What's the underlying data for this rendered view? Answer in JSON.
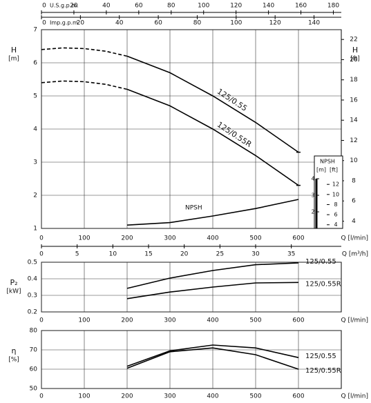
{
  "chart_data": [
    {
      "type": "line",
      "x_label": "Q [l/min]",
      "xlim": [
        0,
        700
      ],
      "xticks": [
        0,
        100,
        200,
        300,
        400,
        500,
        600
      ],
      "y_label": "H",
      "y_unit": "[m]",
      "ylim": [
        1,
        7
      ],
      "yticks": [
        1,
        2,
        3,
        4,
        5,
        6,
        7
      ],
      "y2_label": "H",
      "y2_unit": "[ft]",
      "y2lim": [
        3.28,
        22.97
      ],
      "y2ticks": [
        4,
        6,
        8,
        10,
        12,
        14,
        16,
        18,
        20,
        22
      ],
      "grid": true,
      "dashed_range": [
        0,
        200
      ],
      "top_axes": [
        {
          "label": "U.S.g.p.m.",
          "lim": [
            0,
            184.9
          ],
          "ticks": [
            0,
            20,
            40,
            60,
            80,
            100,
            120,
            140,
            160,
            180
          ]
        },
        {
          "label": "Imp.g.p.m.",
          "lim": [
            0,
            154
          ],
          "ticks": [
            0,
            20,
            40,
            60,
            80,
            100,
            120,
            140
          ]
        }
      ],
      "bottom_axis": {
        "label": "Q [m³/h]",
        "lim": [
          0,
          42
        ],
        "ticks": [
          0,
          5,
          10,
          15,
          20,
          25,
          30,
          35
        ]
      },
      "npsh_axis": {
        "label": "NPSH",
        "unit": "[m]",
        "ylim": [
          1,
          4
        ],
        "yticks": [
          2,
          3,
          4
        ],
        "unit2": "[ft]",
        "y2lim": [
          3.28,
          13.12
        ],
        "y2ticks": [
          4,
          6,
          8,
          10,
          12
        ]
      },
      "x": [
        0,
        50,
        100,
        150,
        200,
        300,
        400,
        500,
        600
      ],
      "series": [
        {
          "name": "125/0.55",
          "color": "#000000",
          "values": [
            6.4,
            6.45,
            6.43,
            6.35,
            6.2,
            5.7,
            5.0,
            4.2,
            3.3
          ]
        },
        {
          "name": "125/0.55R",
          "color": "#000000",
          "values": [
            5.4,
            5.45,
            5.43,
            5.35,
            5.2,
            4.7,
            4.0,
            3.2,
            2.3
          ]
        },
        {
          "name": "NPSH",
          "color": "#000000",
          "axis": "npsh",
          "values": [
            null,
            null,
            null,
            null,
            1.2,
            1.35,
            1.75,
            2.2,
            2.75
          ]
        }
      ]
    },
    {
      "type": "line",
      "x_label": "Q [l/min]",
      "xlim": [
        0,
        700
      ],
      "xticks": [
        0,
        100,
        200,
        300,
        400,
        500,
        600
      ],
      "y_label": "P₂",
      "y_unit": "[kW]",
      "ylim": [
        0.2,
        0.5
      ],
      "yticks": [
        0.2,
        0.3,
        0.4,
        0.5
      ],
      "grid": true,
      "x": [
        200,
        300,
        400,
        500,
        600
      ],
      "series": [
        {
          "name": "125/0.55",
          "color": "#000000",
          "values": [
            0.342,
            0.404,
            0.45,
            0.485,
            0.496
          ]
        },
        {
          "name": "125/0.55R",
          "color": "#000000",
          "values": [
            0.28,
            0.32,
            0.35,
            0.375,
            0.378
          ]
        }
      ]
    },
    {
      "type": "line",
      "x_label": "Q [l/min]",
      "xlim": [
        0,
        700
      ],
      "xticks": [
        0,
        100,
        200,
        300,
        400,
        500,
        600
      ],
      "y_label": "η",
      "y_unit": "[%]",
      "ylim": [
        50,
        80
      ],
      "yticks": [
        50,
        60,
        70,
        80
      ],
      "grid": true,
      "x": [
        200,
        300,
        400,
        500,
        600
      ],
      "series": [
        {
          "name": "125/0.55",
          "color": "#000000",
          "values": [
            61.5,
            69.5,
            72.5,
            71,
            66
          ]
        },
        {
          "name": "125/0.55R",
          "color": "#000000",
          "values": [
            60.5,
            69,
            71,
            67.5,
            60
          ]
        }
      ]
    }
  ]
}
